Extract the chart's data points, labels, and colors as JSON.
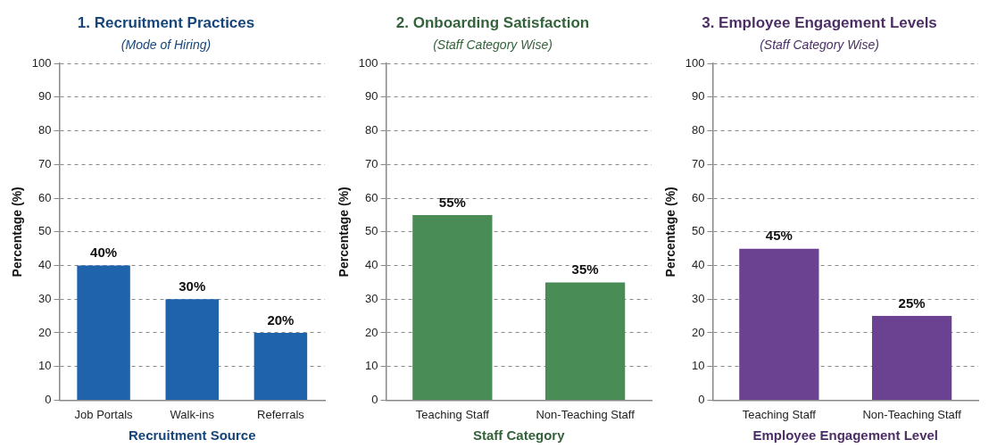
{
  "chart_data": [
    {
      "type": "bar",
      "title": "1. Recruitment Practices",
      "subtitle": "(Mode of Hiring)",
      "xlabel": "Recruitment Source",
      "ylabel": "Percentage (%)",
      "categories": [
        "Job Portals",
        "Walk-ins",
        "Referrals"
      ],
      "values": [
        40,
        30,
        20
      ],
      "value_labels": [
        "40%",
        "30%",
        "20%"
      ],
      "color": "#1f63ad",
      "ylim": [
        0,
        100
      ],
      "yticks": [
        0,
        10,
        20,
        30,
        40,
        50,
        60,
        70,
        80,
        90,
        100
      ],
      "grid": "y"
    },
    {
      "type": "bar",
      "title": "2. Onboarding Satisfaction",
      "subtitle": "(Staff Category Wise)",
      "xlabel": "Staff Category",
      "ylabel": "Percentage (%)",
      "categories": [
        "Teaching Staff",
        "Non-Teaching Staff"
      ],
      "values": [
        55,
        35
      ],
      "value_labels": [
        "55%",
        "35%"
      ],
      "color": "#4a8c55",
      "ylim": [
        0,
        100
      ],
      "yticks": [
        0,
        10,
        20,
        30,
        40,
        50,
        60,
        70,
        80,
        90,
        100
      ],
      "grid": "y"
    },
    {
      "type": "bar",
      "title": "3. Employee Engagement Levels",
      "subtitle": "(Staff Category Wise)",
      "xlabel": "Employee Engagement Level",
      "ylabel": "Percentage (%)",
      "categories": [
        "Teaching Staff",
        "Non-Teaching Staff"
      ],
      "values": [
        45,
        25
      ],
      "value_labels": [
        "45%",
        "25%"
      ],
      "color": "#6b4192",
      "ylim": [
        0,
        100
      ],
      "yticks": [
        0,
        10,
        20,
        30,
        40,
        50,
        60,
        70,
        80,
        90,
        100
      ],
      "grid": "y"
    }
  ]
}
